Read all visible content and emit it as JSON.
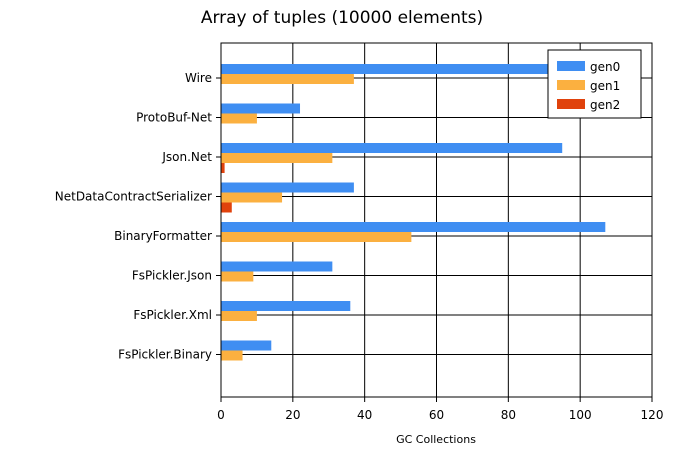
{
  "chart_data": {
    "type": "bar",
    "orientation": "horizontal",
    "title": "Array of tuples (10000 elements)",
    "xlabel": "GC Collections",
    "ylabel": "",
    "xlim": [
      0,
      120
    ],
    "xticks": [
      0,
      20,
      40,
      60,
      80,
      100,
      120
    ],
    "grid": true,
    "legend_position": "top-right",
    "categories": [
      "Wire",
      "ProtoBuf-Net",
      "Json.Net",
      "NetDataContractSerializer",
      "BinaryFormatter",
      "FsPickler.Json",
      "FsPickler.Xml",
      "FsPickler.Binary"
    ],
    "series": [
      {
        "name": "gen0",
        "color": "#3f8ef2",
        "values": [
          108,
          22,
          95,
          37,
          107,
          31,
          36,
          14
        ]
      },
      {
        "name": "gen1",
        "color": "#fbb040",
        "values": [
          37,
          10,
          31,
          17,
          53,
          9,
          10,
          6
        ]
      },
      {
        "name": "gen2",
        "color": "#e0420c",
        "values": [
          0,
          0,
          1,
          3,
          0,
          0,
          0,
          0
        ]
      }
    ]
  }
}
